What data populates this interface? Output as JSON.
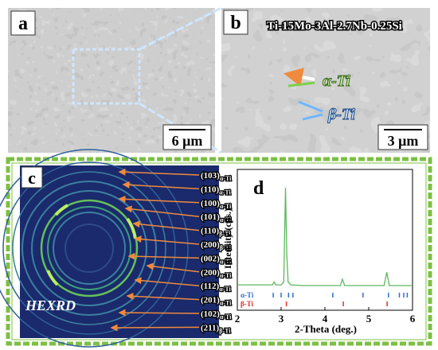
{
  "panel_a": {
    "label": "a",
    "scale_bar": "6 μm"
  },
  "panel_b": {
    "label": "b",
    "title": "Ti-15Mo-3Al-2.7Nb-0.25Si",
    "annotations": [
      "α-Ti",
      "β-Ti"
    ],
    "scale_bar": "3 μm"
  },
  "panel_c": {
    "label": "c",
    "caption": "HEXRD",
    "reflections": [
      {
        "plane": "(103)",
        "phase": "α-Ti"
      },
      {
        "plane": "(110)",
        "phase": "α-Ti"
      },
      {
        "plane": "(100)",
        "phase": "α-Ti"
      },
      {
        "plane": "(101)",
        "phase": "α-Ti"
      },
      {
        "plane": "(110)",
        "phase": "β-Ti"
      },
      {
        "plane": "(200)",
        "phase": "β-Ti"
      },
      {
        "plane": "(002)",
        "phase": "α-Ti"
      },
      {
        "plane": "(200)",
        "phase": "α-Ti"
      },
      {
        "plane": "(112)",
        "phase": "α-Ti"
      },
      {
        "plane": "(201)",
        "phase": "α-Ti"
      },
      {
        "plane": "(102)",
        "phase": "α-Ti"
      },
      {
        "plane": "(211)",
        "phase": "β-Ti"
      }
    ]
  },
  "chart_data": {
    "type": "line",
    "label": "d",
    "xlabel": "2-Theta (deg.)",
    "ylabel": "Intensity (cps.)",
    "xlim": [
      2,
      6
    ],
    "xticks": [
      2,
      3,
      4,
      5,
      6
    ],
    "ylim": [
      0,
      100
    ],
    "x": [
      2,
      2.5,
      2.8,
      2.84,
      2.88,
      3.0,
      3.06,
      3.1,
      3.13,
      3.16,
      3.22,
      3.5,
      4.0,
      4.35,
      4.4,
      4.45,
      4.6,
      5.0,
      5.35,
      5.41,
      5.47,
      5.6,
      6
    ],
    "series": [
      {
        "color": "#5cb85c",
        "values": [
          18,
          18,
          18,
          20,
          18,
          18,
          20,
          87,
          40,
          20,
          18,
          17.5,
          17.5,
          17.5,
          22,
          17.5,
          17.5,
          17.5,
          17.5,
          27,
          17.5,
          17.5,
          17.5
        ]
      }
    ],
    "reference_markers": [
      {
        "name": "α-Ti",
        "color": "#2f6fd0",
        "positions": [
          2.82,
          3.0,
          3.17,
          3.27,
          4.18,
          4.87,
          5.45,
          5.7,
          5.8,
          5.88
        ]
      },
      {
        "name": "β-Ti",
        "color": "#e0302a",
        "positions": [
          3.12,
          4.42,
          5.42
        ]
      }
    ]
  }
}
